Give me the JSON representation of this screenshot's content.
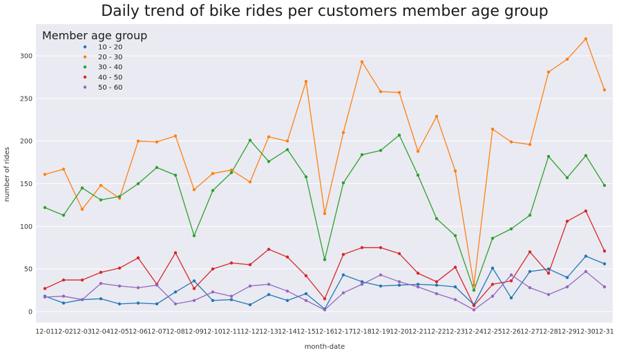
{
  "chart_data": {
    "type": "line",
    "title": "Daily trend of bike rides per customers member age group",
    "xlabel": "month-date",
    "ylabel": "number of rides",
    "ylim": [
      -15,
      338
    ],
    "yticks": [
      0,
      50,
      100,
      150,
      200,
      250,
      300
    ],
    "grid": true,
    "legend_placement": "top-left",
    "legend_title": "Member age group",
    "categories": [
      "12-01",
      "12-02",
      "12-03",
      "12-04",
      "12-05",
      "12-06",
      "12-07",
      "12-08",
      "12-09",
      "12-10",
      "12-11",
      "12-12",
      "12-13",
      "12-14",
      "12-15",
      "12-16",
      "12-17",
      "12-18",
      "12-19",
      "12-20",
      "12-21",
      "12-22",
      "12-23",
      "12-24",
      "12-25",
      "12-26",
      "12-27",
      "12-28",
      "12-29",
      "12-30",
      "12-31"
    ],
    "series": [
      {
        "name": "10 - 20",
        "color": "#1f77b4",
        "values": [
          18,
          10,
          14,
          15,
          9,
          10,
          9,
          23,
          36,
          13,
          14,
          8,
          20,
          13,
          21,
          3,
          43,
          35,
          30,
          31,
          32,
          31,
          29,
          8,
          51,
          16,
          47,
          50,
          40,
          65,
          56
        ]
      },
      {
        "name": "20 - 30",
        "color": "#ff7f0e",
        "values": [
          161,
          167,
          120,
          148,
          133,
          200,
          199,
          206,
          143,
          162,
          166,
          152,
          205,
          200,
          270,
          115,
          210,
          293,
          258,
          257,
          188,
          229,
          165,
          31,
          214,
          199,
          196,
          281,
          296,
          320,
          260
        ]
      },
      {
        "name": "30 - 40",
        "color": "#2ca02c",
        "values": [
          122,
          113,
          145,
          131,
          135,
          150,
          169,
          160,
          89,
          142,
          163,
          201,
          176,
          190,
          158,
          61,
          151,
          184,
          189,
          207,
          160,
          109,
          89,
          25,
          86,
          97,
          113,
          182,
          157,
          183,
          148
        ]
      },
      {
        "name": "40 - 50",
        "color": "#d62728",
        "values": [
          27,
          37,
          37,
          46,
          51,
          63,
          32,
          69,
          27,
          50,
          57,
          55,
          73,
          64,
          42,
          15,
          67,
          75,
          75,
          68,
          45,
          35,
          52,
          7,
          32,
          36,
          70,
          45,
          106,
          118,
          71
        ]
      },
      {
        "name": "50 - 60",
        "color": "#9467bd",
        "values": [
          17,
          18,
          14,
          33,
          30,
          28,
          31,
          9,
          13,
          23,
          18,
          30,
          32,
          24,
          13,
          2,
          22,
          32,
          43,
          35,
          29,
          21,
          14,
          2,
          18,
          43,
          28,
          20,
          29,
          47,
          29
        ]
      }
    ]
  }
}
